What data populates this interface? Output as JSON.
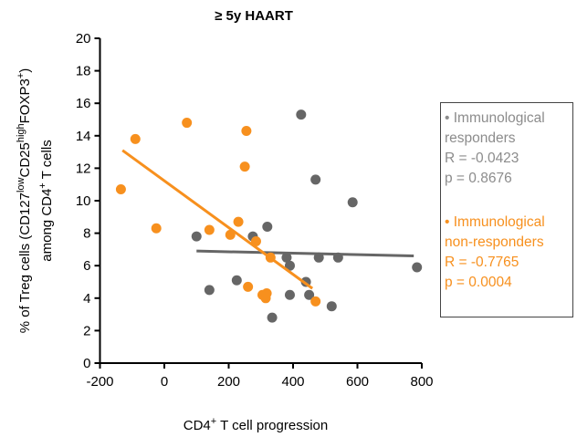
{
  "chart_data": {
    "type": "scatter",
    "title": "≥ 5y HAART",
    "y_label": [
      [
        "% of Treg cells (CD127",
        "low",
        "CD25",
        "high",
        "FOXP3",
        "+",
        ")"
      ],
      [
        "among CD4",
        "+",
        " T cells"
      ]
    ],
    "x_label": [
      "CD4",
      "+",
      " T cell progression"
    ],
    "xlim": [
      -200,
      800
    ],
    "xticks": [
      -200,
      0,
      200,
      400,
      600,
      800
    ],
    "ylim": [
      0,
      20
    ],
    "yticks": [
      0,
      2,
      4,
      6,
      8,
      10,
      12,
      14,
      16,
      18,
      20
    ],
    "series": [
      {
        "name": "Immunological responders",
        "color": "#666666",
        "text_color": "#8c8c8c",
        "stats": [
          "R = -0.0423",
          "p = 0.8676"
        ],
        "x": [
          425,
          470,
          585,
          100,
          275,
          320,
          140,
          225,
          380,
          480,
          540,
          390,
          440,
          390,
          450,
          335,
          520,
          785
        ],
        "values": [
          15.3,
          11.3,
          9.9,
          7.8,
          7.8,
          8.4,
          4.5,
          5.1,
          6.5,
          6.5,
          6.5,
          6.0,
          5.0,
          4.2,
          4.2,
          2.8,
          3.5,
          5.9
        ],
        "fit": {
          "x": [
            100,
            775
          ],
          "values": [
            6.9,
            6.6
          ]
        }
      },
      {
        "name": "Immunological non-responders",
        "color": "#f7901e",
        "text_color": "#f7901e",
        "stats": [
          "R = -0.7765",
          "p = 0.0004"
        ],
        "x": [
          -135,
          -90,
          -25,
          70,
          255,
          250,
          140,
          230,
          205,
          285,
          330,
          260,
          305,
          315,
          318,
          470
        ],
        "values": [
          10.7,
          13.8,
          8.3,
          14.8,
          14.3,
          12.1,
          8.2,
          8.7,
          7.9,
          7.5,
          6.5,
          4.7,
          4.2,
          4.0,
          4.3,
          3.8
        ],
        "fit": {
          "x": [
            -130,
            460
          ],
          "values": [
            13.1,
            4.6
          ]
        }
      }
    ]
  }
}
